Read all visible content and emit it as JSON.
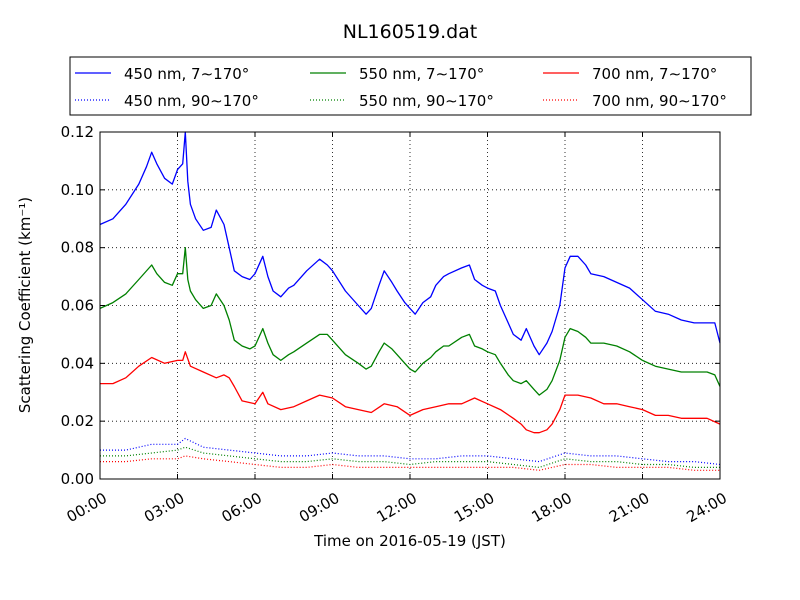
{
  "chart_data": {
    "type": "line",
    "title": "NL160519.dat",
    "xlabel": "Time on 2016-05-19 (JST)",
    "ylabel": "Scattering Coefficient (km⁻¹)",
    "x_unit": "hours",
    "xlim": [
      0,
      24
    ],
    "ylim": [
      0,
      0.12
    ],
    "x_ticks": [
      0,
      3,
      6,
      9,
      12,
      15,
      18,
      21,
      24
    ],
    "x_tick_labels": [
      "00:00",
      "03:00",
      "06:00",
      "09:00",
      "12:00",
      "15:00",
      "18:00",
      "21:00",
      "24:00"
    ],
    "y_ticks": [
      0,
      0.02,
      0.04,
      0.06,
      0.08,
      0.1,
      0.12
    ],
    "y_tick_labels": [
      "0.00",
      "0.02",
      "0.04",
      "0.06",
      "0.08",
      "0.10",
      "0.12"
    ],
    "grid": true,
    "legend_position": "top",
    "legend_columns": 3,
    "series": [
      {
        "name": "450 nm, 7∼170°",
        "color": "#0000ff",
        "style": "solid",
        "x": [
          0,
          0.5,
          1,
          1.5,
          1.8,
          2,
          2.2,
          2.5,
          2.8,
          3,
          3.2,
          3.3,
          3.4,
          3.5,
          3.7,
          4,
          4.3,
          4.5,
          4.8,
          5,
          5.2,
          5.5,
          5.8,
          6,
          6.3,
          6.5,
          6.7,
          7,
          7.3,
          7.5,
          8,
          8.5,
          8.8,
          9,
          9.5,
          10,
          10.3,
          10.5,
          10.8,
          11,
          11.3,
          11.5,
          11.8,
          12,
          12.2,
          12.5,
          12.8,
          13,
          13.3,
          13.5,
          14,
          14.3,
          14.5,
          14.8,
          15,
          15.3,
          15.5,
          15.8,
          16,
          16.3,
          16.5,
          16.8,
          17,
          17.3,
          17.5,
          17.8,
          18,
          18.2,
          18.5,
          18.8,
          19,
          19.5,
          20,
          20.5,
          21,
          21.5,
          22,
          22.5,
          23,
          23.5,
          23.8,
          24
        ],
        "y": [
          0.088,
          0.09,
          0.095,
          0.102,
          0.108,
          0.113,
          0.109,
          0.104,
          0.102,
          0.107,
          0.109,
          0.12,
          0.103,
          0.095,
          0.09,
          0.086,
          0.087,
          0.093,
          0.088,
          0.08,
          0.072,
          0.07,
          0.069,
          0.071,
          0.077,
          0.07,
          0.065,
          0.063,
          0.066,
          0.067,
          0.072,
          0.076,
          0.074,
          0.072,
          0.065,
          0.06,
          0.057,
          0.059,
          0.067,
          0.072,
          0.068,
          0.065,
          0.061,
          0.059,
          0.057,
          0.061,
          0.063,
          0.067,
          0.07,
          0.071,
          0.073,
          0.074,
          0.069,
          0.067,
          0.066,
          0.065,
          0.06,
          0.054,
          0.05,
          0.048,
          0.052,
          0.046,
          0.043,
          0.047,
          0.051,
          0.06,
          0.073,
          0.077,
          0.077,
          0.074,
          0.071,
          0.07,
          0.068,
          0.066,
          0.062,
          0.058,
          0.057,
          0.055,
          0.054,
          0.054,
          0.054,
          0.047
        ]
      },
      {
        "name": "550 nm, 7∼170°",
        "color": "#008000",
        "style": "solid",
        "x": [
          0,
          0.5,
          1,
          1.5,
          2,
          2.2,
          2.5,
          2.8,
          3,
          3.2,
          3.3,
          3.4,
          3.5,
          3.7,
          4,
          4.3,
          4.5,
          4.8,
          5,
          5.2,
          5.5,
          5.8,
          6,
          6.3,
          6.5,
          6.7,
          7,
          7.3,
          7.5,
          8,
          8.5,
          8.8,
          9,
          9.5,
          10,
          10.3,
          10.5,
          10.8,
          11,
          11.3,
          11.5,
          11.8,
          12,
          12.2,
          12.5,
          12.8,
          13,
          13.3,
          13.5,
          14,
          14.3,
          14.5,
          14.8,
          15,
          15.3,
          15.5,
          15.8,
          16,
          16.3,
          16.5,
          16.8,
          17,
          17.3,
          17.5,
          17.8,
          18,
          18.2,
          18.5,
          18.8,
          19,
          19.5,
          20,
          20.5,
          21,
          21.5,
          22,
          22.5,
          23,
          23.5,
          23.8,
          24
        ],
        "y": [
          0.059,
          0.061,
          0.064,
          0.069,
          0.074,
          0.071,
          0.068,
          0.067,
          0.071,
          0.071,
          0.08,
          0.069,
          0.065,
          0.062,
          0.059,
          0.06,
          0.064,
          0.06,
          0.055,
          0.048,
          0.046,
          0.045,
          0.046,
          0.052,
          0.047,
          0.043,
          0.041,
          0.043,
          0.044,
          0.047,
          0.05,
          0.05,
          0.048,
          0.043,
          0.04,
          0.038,
          0.039,
          0.044,
          0.047,
          0.045,
          0.043,
          0.04,
          0.038,
          0.037,
          0.04,
          0.042,
          0.044,
          0.046,
          0.046,
          0.049,
          0.05,
          0.046,
          0.045,
          0.044,
          0.043,
          0.04,
          0.036,
          0.034,
          0.033,
          0.034,
          0.031,
          0.029,
          0.031,
          0.034,
          0.041,
          0.049,
          0.052,
          0.051,
          0.049,
          0.047,
          0.047,
          0.046,
          0.044,
          0.041,
          0.039,
          0.038,
          0.037,
          0.037,
          0.037,
          0.036,
          0.032
        ]
      },
      {
        "name": "700 nm, 7∼170°",
        "color": "#ff0000",
        "style": "solid",
        "x": [
          0,
          0.5,
          1,
          1.5,
          2,
          2.5,
          3,
          3.2,
          3.3,
          3.5,
          4,
          4.5,
          4.8,
          5,
          5.2,
          5.5,
          6,
          6.3,
          6.5,
          7,
          7.5,
          8,
          8.5,
          9,
          9.5,
          10,
          10.5,
          11,
          11.5,
          12,
          12.5,
          13,
          13.5,
          14,
          14.5,
          15,
          15.5,
          16,
          16.3,
          16.5,
          16.8,
          17,
          17.3,
          17.5,
          17.8,
          18,
          18.5,
          19,
          19.5,
          20,
          20.5,
          21,
          21.5,
          22,
          22.5,
          23,
          23.5,
          24
        ],
        "y": [
          0.033,
          0.033,
          0.035,
          0.039,
          0.042,
          0.04,
          0.041,
          0.041,
          0.044,
          0.039,
          0.037,
          0.035,
          0.036,
          0.035,
          0.032,
          0.027,
          0.026,
          0.03,
          0.026,
          0.024,
          0.025,
          0.027,
          0.029,
          0.028,
          0.025,
          0.024,
          0.023,
          0.026,
          0.025,
          0.022,
          0.024,
          0.025,
          0.026,
          0.026,
          0.028,
          0.026,
          0.024,
          0.021,
          0.019,
          0.017,
          0.016,
          0.016,
          0.017,
          0.019,
          0.024,
          0.029,
          0.029,
          0.028,
          0.026,
          0.026,
          0.025,
          0.024,
          0.022,
          0.022,
          0.021,
          0.021,
          0.021,
          0.019
        ]
      },
      {
        "name": "450 nm, 90∼170°",
        "color": "#0000ff",
        "style": "dotted",
        "x": [
          0,
          1,
          2,
          3,
          3.3,
          4,
          5,
          6,
          7,
          8,
          9,
          10,
          11,
          12,
          13,
          14,
          15,
          16,
          17,
          18,
          19,
          20,
          21,
          22,
          23,
          24
        ],
        "y": [
          0.01,
          0.01,
          0.012,
          0.012,
          0.014,
          0.011,
          0.01,
          0.009,
          0.008,
          0.008,
          0.009,
          0.008,
          0.008,
          0.007,
          0.007,
          0.008,
          0.008,
          0.007,
          0.006,
          0.009,
          0.008,
          0.008,
          0.007,
          0.006,
          0.006,
          0.005
        ]
      },
      {
        "name": "550 nm, 90∼170°",
        "color": "#008000",
        "style": "dotted",
        "x": [
          0,
          1,
          2,
          3,
          3.3,
          4,
          5,
          6,
          7,
          8,
          9,
          10,
          11,
          12,
          13,
          14,
          15,
          16,
          17,
          18,
          19,
          20,
          21,
          22,
          23,
          24
        ],
        "y": [
          0.008,
          0.008,
          0.009,
          0.01,
          0.011,
          0.009,
          0.008,
          0.007,
          0.006,
          0.006,
          0.007,
          0.006,
          0.006,
          0.005,
          0.006,
          0.006,
          0.006,
          0.005,
          0.004,
          0.007,
          0.006,
          0.006,
          0.005,
          0.005,
          0.004,
          0.004
        ]
      },
      {
        "name": "700 nm, 90∼170°",
        "color": "#ff0000",
        "style": "dotted",
        "x": [
          0,
          1,
          2,
          3,
          3.3,
          4,
          5,
          6,
          7,
          8,
          9,
          10,
          11,
          12,
          13,
          14,
          15,
          16,
          17,
          18,
          19,
          20,
          21,
          22,
          23,
          24
        ],
        "y": [
          0.006,
          0.006,
          0.007,
          0.007,
          0.008,
          0.007,
          0.006,
          0.005,
          0.004,
          0.004,
          0.005,
          0.004,
          0.004,
          0.004,
          0.004,
          0.004,
          0.004,
          0.004,
          0.003,
          0.005,
          0.005,
          0.004,
          0.004,
          0.004,
          0.003,
          0.003
        ]
      }
    ]
  }
}
